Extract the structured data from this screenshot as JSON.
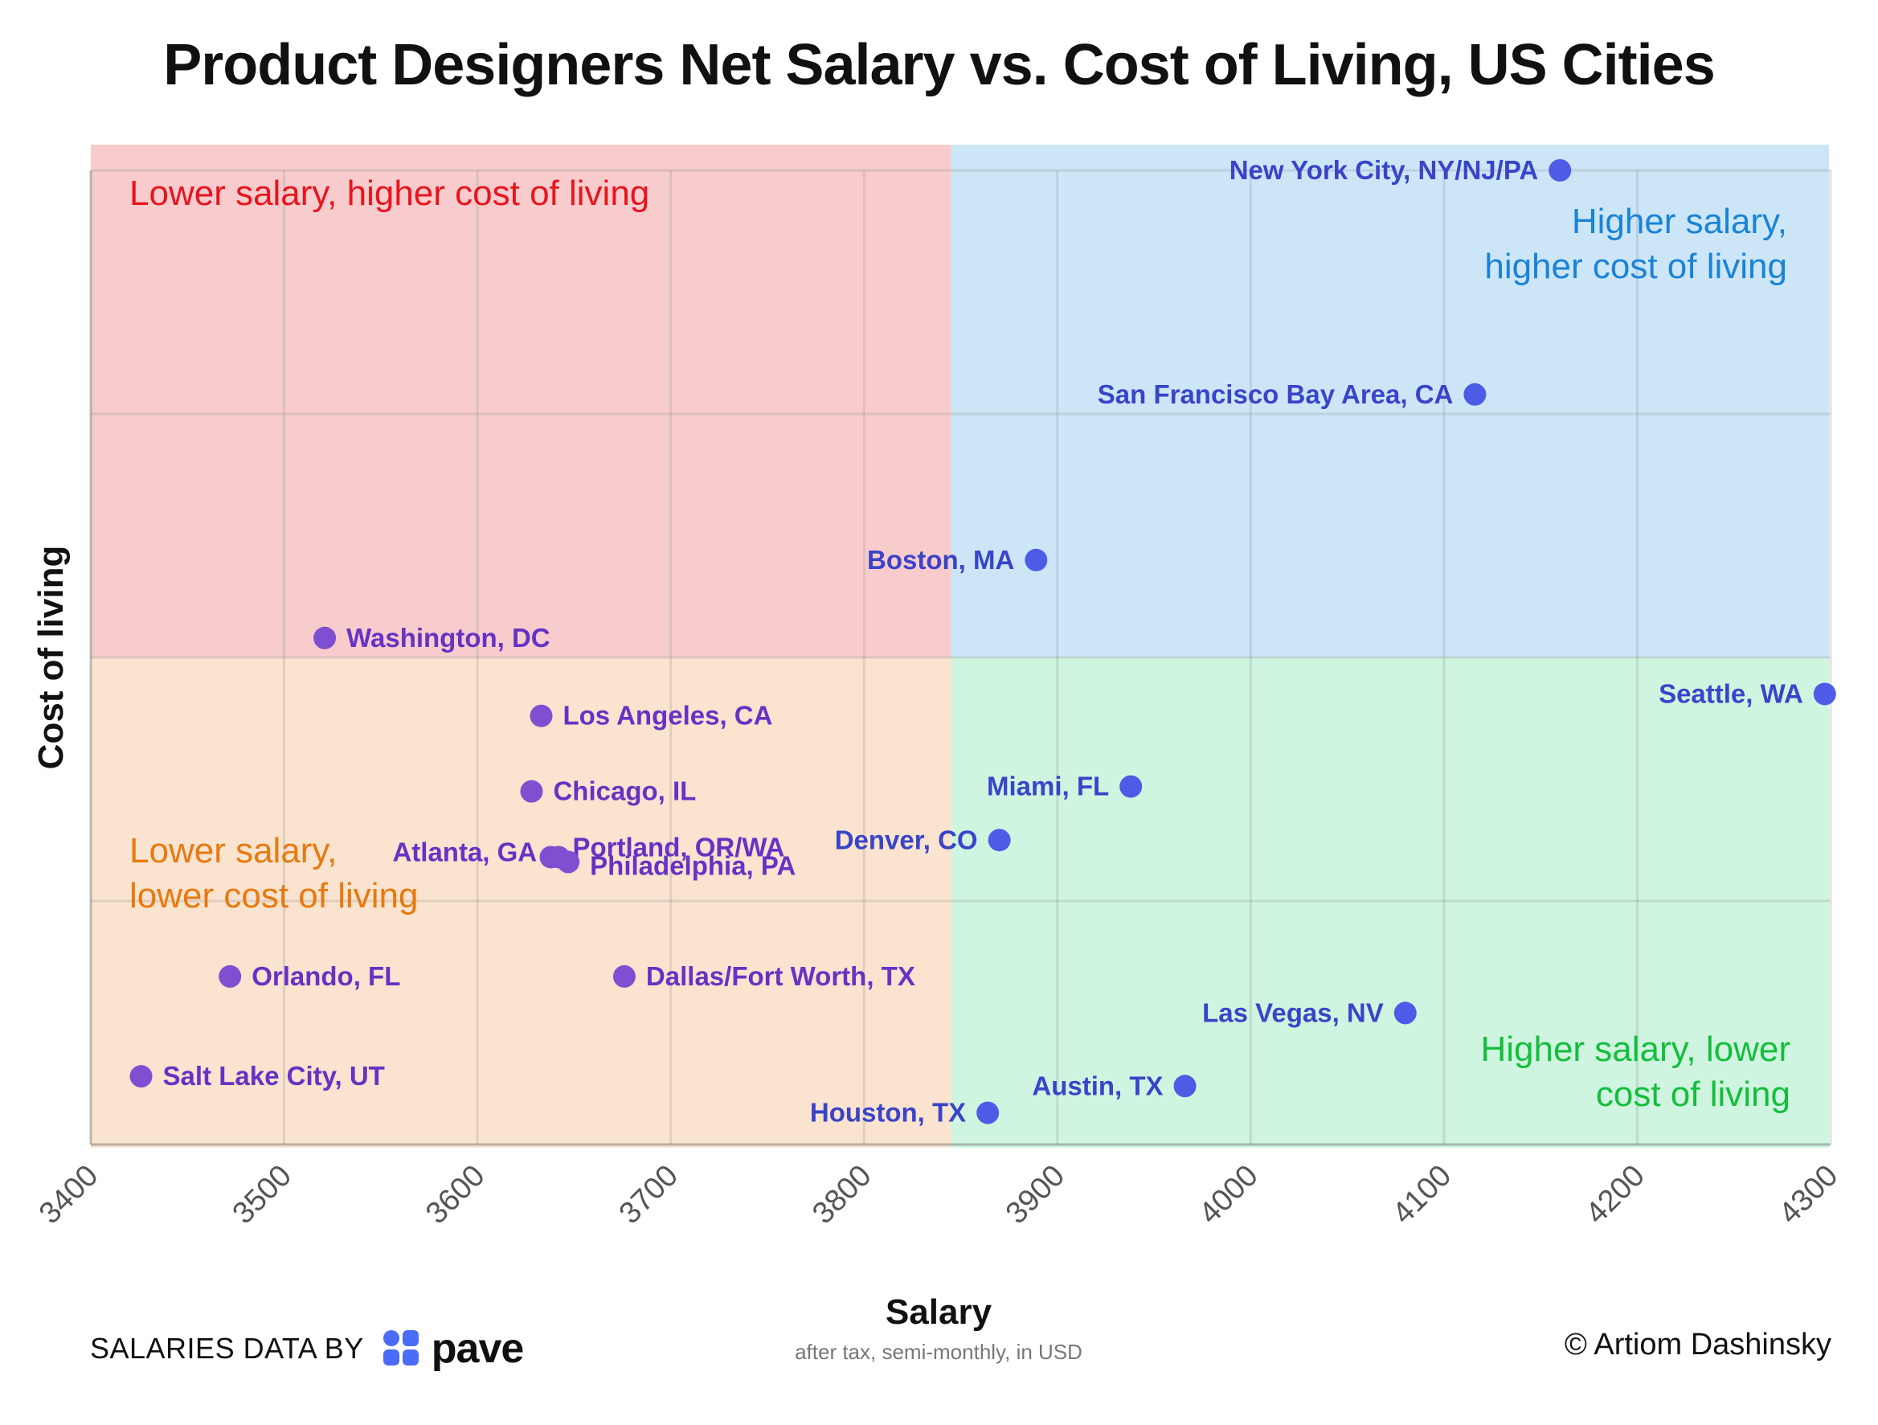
{
  "chart_data": {
    "type": "scatter",
    "title": "Product Designers Net Salary vs. Cost of Living, US Cities",
    "xlabel": "Salary",
    "xlabel_note": "after tax, semi-monthly, in USD",
    "ylabel": "Cost of living",
    "xlim": [
      3400,
      4300
    ],
    "ylim": [
      0,
      4
    ],
    "x_ticks": [
      "3400",
      "3500",
      "3600",
      "3700",
      "3800",
      "3900",
      "4000",
      "4100",
      "4200",
      "4300"
    ],
    "grid": true,
    "quadrant_split": {
      "x": 3845,
      "y": 2
    },
    "quadrants": [
      {
        "label_lines": [
          "Lower salary, higher cost of living"
        ],
        "color": "#f8cccc",
        "text_color": "#e8141e"
      },
      {
        "label_lines": [
          "Higher salary,",
          "higher cost of living"
        ],
        "color": "#cce6f8",
        "text_color": "#1a83d6"
      },
      {
        "label_lines": [
          "Lower salary,",
          "lower cost of living"
        ],
        "color": "#fae3cf",
        "text_color": "#e77a10"
      },
      {
        "label_lines": [
          "Higher salary, lower",
          "cost of living"
        ],
        "color": "#cff5e0",
        "text_color": "#14be3c"
      }
    ],
    "points": [
      {
        "label": "New York City, NY/NJ/PA",
        "x": 4160,
        "y": 4.0
      },
      {
        "label": "San Francisco Bay Area, CA",
        "x": 4116,
        "y": 3.08
      },
      {
        "label": "Boston, MA",
        "x": 3889,
        "y": 2.4
      },
      {
        "label": "Washington, DC",
        "x": 3521,
        "y": 2.08
      },
      {
        "label": "Seattle, WA",
        "x": 4297,
        "y": 1.85
      },
      {
        "label": "Los Angeles, CA",
        "x": 3633,
        "y": 1.76
      },
      {
        "label": "Miami, FL",
        "x": 3938,
        "y": 1.47
      },
      {
        "label": "Chicago, IL",
        "x": 3628,
        "y": 1.45
      },
      {
        "label": "Denver, CO",
        "x": 3870,
        "y": 1.25
      },
      {
        "label": "Portland, OR/WA",
        "x": 3638,
        "y": 1.18
      },
      {
        "label": "Atlanta, GA",
        "x": 3642,
        "y": 1.18
      },
      {
        "label": "Philadelphia, PA",
        "x": 3647,
        "y": 1.16
      },
      {
        "label": "Orlando, FL",
        "x": 3472,
        "y": 0.69
      },
      {
        "label": "Dallas/Fort Worth, TX",
        "x": 3676,
        "y": 0.69
      },
      {
        "label": "Las Vegas, NV",
        "x": 4080,
        "y": 0.54
      },
      {
        "label": "Salt Lake City, UT",
        "x": 3426,
        "y": 0.28
      },
      {
        "label": "Austin, TX",
        "x": 3966,
        "y": 0.24
      },
      {
        "label": "Houston, TX",
        "x": 3864,
        "y": 0.13
      }
    ]
  },
  "footer": {
    "data_credit": "SALARIES DATA BY",
    "brand": "pave",
    "copyright": "© Artiom Dashinsky"
  },
  "colors": {
    "low_salary_point": "#7e4fd1",
    "high_salary_point": "#4d5ce6",
    "low_salary_label": "#6533c4",
    "high_salary_label": "#3a44c9",
    "brand": "#4a6cf7"
  }
}
